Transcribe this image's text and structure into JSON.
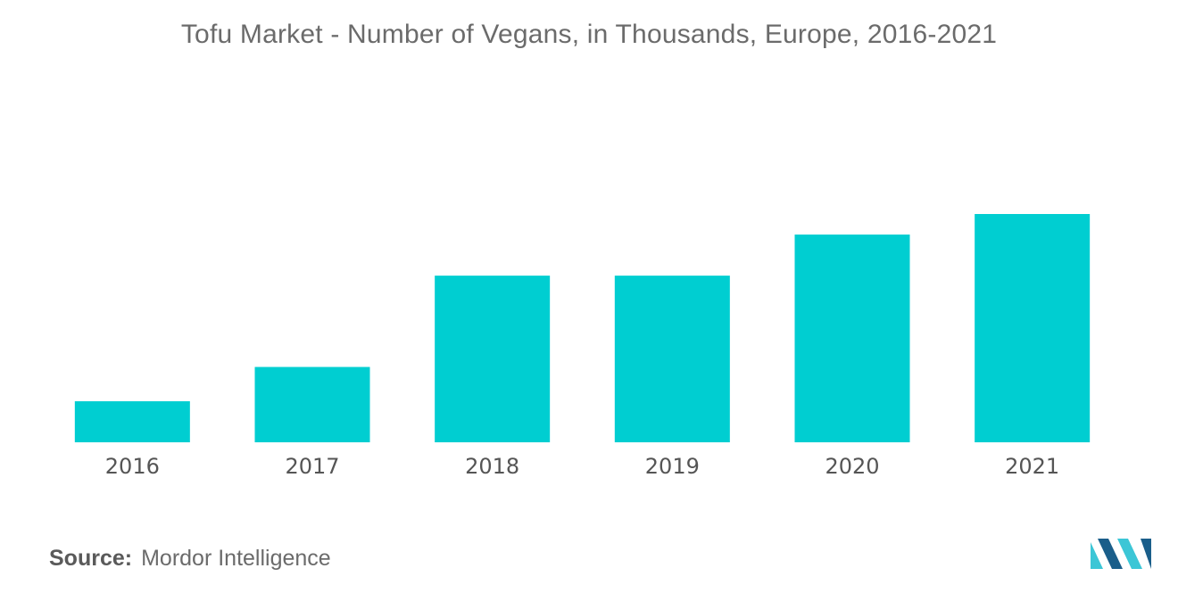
{
  "title": "Tofu Market - Number of Vegans, in Thousands, Europe, 2016-2021",
  "source": {
    "label": "Source:",
    "value": "Mordor Intelligence"
  },
  "logo": {
    "icon": "mordor-intelligence-logo-icon"
  },
  "colors": {
    "bar": "#00CED1",
    "text": "#6b6b6b",
    "logo_dark": "#1a5e8a",
    "logo_light": "#3cc6d6"
  },
  "chart_data": {
    "type": "bar",
    "title": "Tofu Market - Number of Vegans, in Thousands, Europe, 2016-2021",
    "xlabel": "",
    "ylabel": "",
    "categories": [
      "2016",
      "2017",
      "2018",
      "2019",
      "2020",
      "2021"
    ],
    "values": [
      18,
      33,
      73,
      73,
      91,
      100
    ],
    "ylim": [
      0,
      100
    ],
    "grid": false,
    "legend": "none"
  }
}
